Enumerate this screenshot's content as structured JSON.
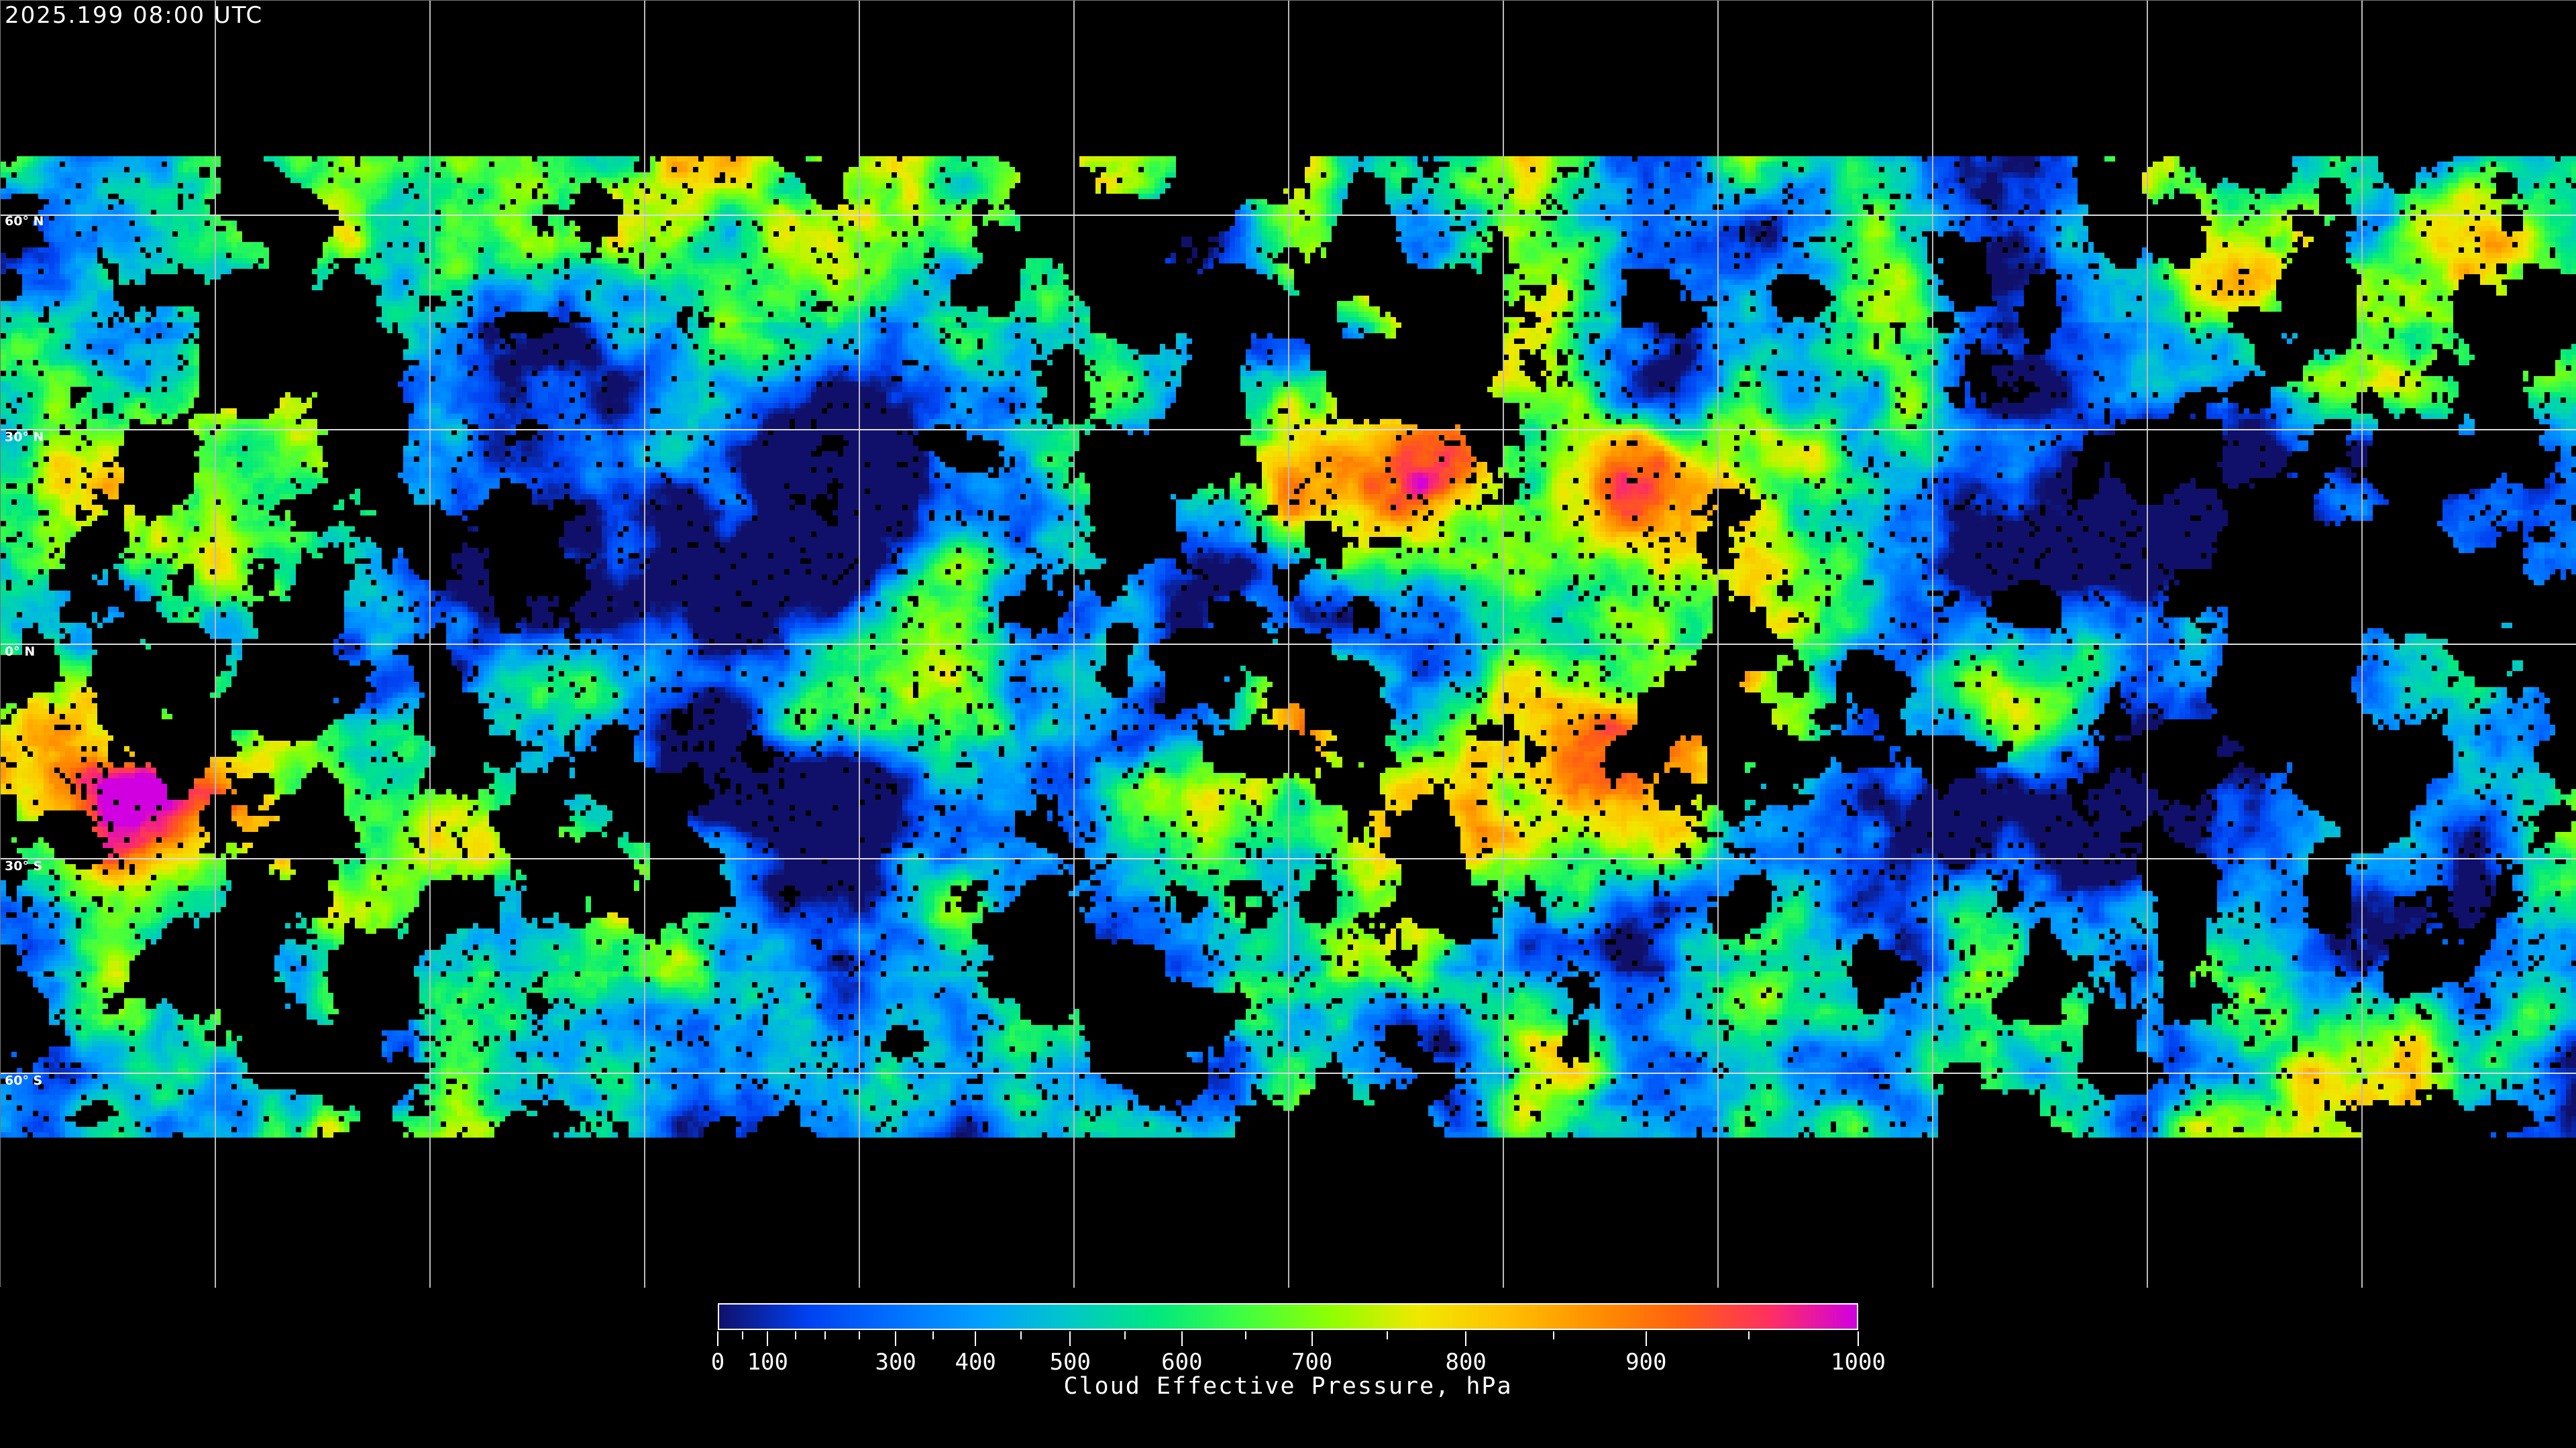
{
  "title": "2025.199 08:00 UTC",
  "map": {
    "projection": "equirectangular",
    "graticule_spacing_deg": 30,
    "latitude_labels": [
      "60° N",
      "30° N",
      "0° N",
      "30° S",
      "60° S"
    ]
  },
  "colorbar": {
    "label": "Cloud Effective Pressure, hPa",
    "tick_labels": [
      "0",
      "100",
      "300",
      "400",
      "500",
      "600",
      "700",
      "800",
      "900",
      "1000"
    ],
    "colormap": [
      "#10106a",
      "#0040f0",
      "#0070ff",
      "#00a0ff",
      "#00c8c8",
      "#00e880",
      "#40ff40",
      "#90ff00",
      "#f0e800",
      "#ffc000",
      "#ff9000",
      "#ff6010",
      "#ff3060",
      "#d000e0"
    ]
  }
}
